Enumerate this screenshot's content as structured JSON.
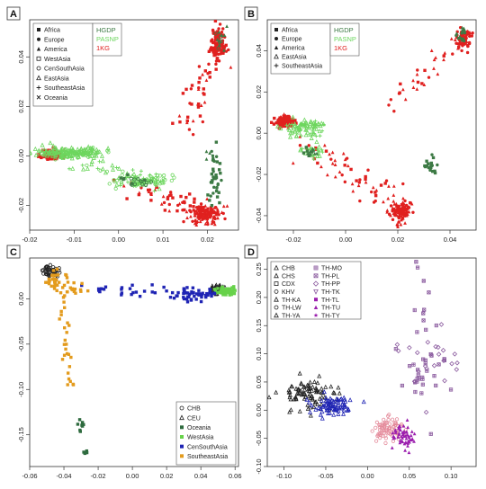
{
  "chart_data": [
    {
      "type": "scatter",
      "panel_label": "A",
      "xlim": [
        -0.02,
        0.027
      ],
      "ylim": [
        -0.03,
        0.055
      ],
      "xticks": [
        -0.02,
        -0.01,
        0.0,
        0.01,
        0.02
      ],
      "xtick_labels": [
        "-0.02",
        "-0.01",
        "0.00",
        "0.01",
        "0.02"
      ],
      "yticks": [
        -0.02,
        0.0,
        0.02,
        0.04
      ],
      "ytick_labels": [
        "-0.02",
        "0.00",
        "0.02",
        "0.04"
      ],
      "legend_population": [
        "Africa",
        "Europe",
        "America",
        "WestAsia",
        "CenSouthAsia",
        "EastAsia",
        "SoutheastAsia",
        "Oceania"
      ],
      "legend_dataset": [
        {
          "name": "HGDP",
          "color": "#3d7a45"
        },
        {
          "name": "PASNP",
          "color": "#6dd65e"
        },
        {
          "name": "1KG",
          "color": "#e0201f"
        }
      ],
      "series": [
        {
          "name": "1KG",
          "color": "#e0201f",
          "clusters": [
            {
              "x": -0.015,
              "y": 0.0005,
              "sx": 0.0012,
              "sy": 0.0011,
              "n": 110
            },
            {
              "x": 0.0195,
              "y": -0.0235,
              "sx": 0.0018,
              "sy": 0.0018,
              "n": 140
            },
            {
              "x": 0.0225,
              "y": 0.0455,
              "sx": 0.0008,
              "sy": 0.0035,
              "n": 110
            }
          ],
          "lines": [
            {
              "from": [
                0.002,
                -0.011
              ],
              "to": [
                0.0195,
                -0.023
              ],
              "n": 55,
              "spread": 0.0025
            },
            {
              "from": [
                0.0145,
                0.01
              ],
              "to": [
                0.0215,
                0.043
              ],
              "n": 40,
              "spread": 0.002
            }
          ]
        },
        {
          "name": "PASNP",
          "color": "#6dd65e",
          "clusters": [
            {
              "x": -0.0115,
              "y": 0.0013,
              "sx": 0.0045,
              "sy": 0.0012,
              "n": 170
            },
            {
              "x": 0.005,
              "y": -0.0105,
              "sx": 0.003,
              "sy": 0.0012,
              "n": 70
            }
          ],
          "lines": [
            {
              "from": [
                -0.009,
                -0.004
              ],
              "to": [
                0.012,
                -0.012
              ],
              "n": 50,
              "spread": 0.0018
            }
          ]
        },
        {
          "name": "HGDP",
          "color": "#3d7a45",
          "clusters": [
            {
              "x": 0.0215,
              "y": -0.012,
              "sx": 0.0008,
              "sy": 0.005,
              "n": 32
            },
            {
              "x": 0.021,
              "y": 0.0005,
              "sx": 0.0005,
              "sy": 0.0015,
              "n": 10
            },
            {
              "x": 0.023,
              "y": 0.047,
              "sx": 0.0006,
              "sy": 0.0025,
              "n": 14
            },
            {
              "x": 0.0035,
              "y": -0.0105,
              "sx": 0.0022,
              "sy": 0.0009,
              "n": 18
            }
          ],
          "lines": []
        }
      ]
    },
    {
      "type": "scatter",
      "panel_label": "B",
      "xlim": [
        -0.03,
        0.05
      ],
      "ylim": [
        -0.047,
        0.055
      ],
      "xticks": [
        -0.02,
        0.0,
        0.02,
        0.04
      ],
      "xtick_labels": [
        "-0.02",
        "0.00",
        "0.02",
        "0.04"
      ],
      "yticks": [
        -0.04,
        -0.02,
        0.0,
        0.02,
        0.04
      ],
      "ytick_labels": [
        "-0.04",
        "-0.02",
        "0.00",
        "0.02",
        "0.04"
      ],
      "legend_population": [
        "Africa",
        "Europe",
        "America",
        "EastAsia",
        "SoutheastAsia"
      ],
      "legend_dataset": [
        {
          "name": "HGDP",
          "color": "#3d7a45"
        },
        {
          "name": "PASNP",
          "color": "#6dd65e"
        },
        {
          "name": "1KG",
          "color": "#e0201f"
        }
      ],
      "series": [
        {
          "name": "1KG",
          "color": "#e0201f",
          "clusters": [
            {
              "x": -0.0235,
              "y": 0.0055,
              "sx": 0.0018,
              "sy": 0.0012,
              "n": 100
            },
            {
              "x": 0.021,
              "y": -0.038,
              "sx": 0.002,
              "sy": 0.0025,
              "n": 120
            },
            {
              "x": 0.045,
              "y": 0.046,
              "sx": 0.0015,
              "sy": 0.0025,
              "n": 80
            }
          ],
          "lines": [
            {
              "from": [
                -0.015,
                -0.005
              ],
              "to": [
                0.02,
                -0.035
              ],
              "n": 60,
              "spread": 0.0035
            },
            {
              "from": [
                0.017,
                0.012
              ],
              "to": [
                0.044,
                0.044
              ],
              "n": 28,
              "spread": 0.0025
            }
          ]
        },
        {
          "name": "PASNP",
          "color": "#6dd65e",
          "clusters": [
            {
              "x": -0.016,
              "y": 0.0025,
              "sx": 0.0045,
              "sy": 0.0025,
              "n": 85
            },
            {
              "x": -0.013,
              "y": -0.009,
              "sx": 0.0018,
              "sy": 0.0015,
              "n": 25
            }
          ],
          "lines": []
        },
        {
          "name": "HGDP",
          "color": "#3d7a45",
          "clusters": [
            {
              "x": 0.032,
              "y": -0.017,
              "sx": 0.0012,
              "sy": 0.0025,
              "n": 18
            },
            {
              "x": 0.044,
              "y": 0.047,
              "sx": 0.0018,
              "sy": 0.0018,
              "n": 15
            },
            {
              "x": -0.0135,
              "y": -0.0095,
              "sx": 0.0015,
              "sy": 0.001,
              "n": 14
            }
          ],
          "lines": []
        }
      ]
    },
    {
      "type": "scatter",
      "panel_label": "C",
      "xlim": [
        -0.06,
        0.062
      ],
      "ylim": [
        -0.185,
        0.045
      ],
      "xticks": [
        -0.06,
        -0.04,
        -0.02,
        0.0,
        0.02,
        0.04,
        0.06
      ],
      "xtick_labels": [
        "-0.06",
        "-0.04",
        "-0.02",
        "0.00",
        "0.02",
        "0.04",
        "0.06"
      ],
      "yticks": [
        -0.15,
        -0.1,
        -0.05,
        0.0
      ],
      "ytick_labels": [
        "-0.15",
        "-0.10",
        "-0.05",
        "0.00"
      ],
      "legend_population": [
        {
          "name": "CHB",
          "color": "#222222"
        },
        {
          "name": "CEU",
          "color": "#222222"
        },
        {
          "name": "Oceania",
          "color": "#2e6b3e"
        },
        {
          "name": "WestAsia",
          "color": "#67d24a"
        },
        {
          "name": "CenSouthAsia",
          "color": "#1f24b4"
        },
        {
          "name": "SoutheastAsia",
          "color": "#e39b1d"
        }
      ],
      "series": [
        {
          "name": "CHB",
          "color": "#222222",
          "clusters": [
            {
              "x": -0.0475,
              "y": 0.03,
              "sx": 0.0022,
              "sy": 0.003,
              "n": 45
            }
          ],
          "lines": []
        },
        {
          "name": "CEU",
          "color": "#222222",
          "clusters": [
            {
              "x": 0.0505,
              "y": 0.011,
              "sx": 0.0022,
              "sy": 0.0025,
              "n": 45
            }
          ],
          "lines": []
        },
        {
          "name": "WestAsia",
          "color": "#67d24a",
          "clusters": [
            {
              "x": 0.054,
              "y": 0.009,
              "sx": 0.0025,
              "sy": 0.0025,
              "n": 60
            }
          ],
          "lines": []
        },
        {
          "name": "CenSouthAsia",
          "color": "#1f24b4",
          "clusters": [
            {
              "x": 0.035,
              "y": 0.005,
              "sx": 0.007,
              "sy": 0.004,
              "n": 55
            },
            {
              "x": 0.005,
              "y": 0.01,
              "sx": 0.008,
              "sy": 0.004,
              "n": 15
            },
            {
              "x": -0.022,
              "y": 0.012,
              "sx": 0.004,
              "sy": 0.003,
              "n": 8
            }
          ],
          "lines": []
        },
        {
          "name": "SoutheastAsia",
          "color": "#e39b1d",
          "clusters": [
            {
              "x": -0.045,
              "y": 0.022,
              "sx": 0.003,
              "sy": 0.005,
              "n": 25
            },
            {
              "x": -0.036,
              "y": 0.013,
              "sx": 0.005,
              "sy": 0.003,
              "n": 20
            }
          ],
          "lines": [
            {
              "from": [
                -0.041,
                0.005
              ],
              "to": [
                -0.037,
                -0.095
              ],
              "n": 28,
              "spread": 0.0015
            }
          ]
        },
        {
          "name": "Oceania",
          "color": "#2e6b3e",
          "clusters": [
            {
              "x": -0.03,
              "y": -0.14,
              "sx": 0.001,
              "sy": 0.004,
              "n": 8
            },
            {
              "x": -0.028,
              "y": -0.172,
              "sx": 0.0008,
              "sy": 0.003,
              "n": 5
            }
          ],
          "lines": []
        }
      ]
    },
    {
      "type": "scatter",
      "panel_label": "D",
      "xlim": [
        -0.12,
        0.13
      ],
      "ylim": [
        -0.1,
        0.27
      ],
      "xticks": [
        -0.1,
        -0.05,
        0.0,
        0.05,
        0.1
      ],
      "xtick_labels": [
        "-0.10",
        "-0.05",
        "0.00",
        "0.05",
        "0.10"
      ],
      "yticks": [
        -0.1,
        -0.05,
        0.0,
        0.05,
        0.1,
        0.15,
        0.2,
        0.25
      ],
      "ytick_labels": [
        "-0.10",
        "-0.05",
        "0.00",
        "0.05",
        "0.10",
        "0.15",
        "0.20",
        "0.25"
      ],
      "legend_population": [
        {
          "name": "CHB",
          "color": "#222222"
        },
        {
          "name": "CHS",
          "color": "#222222"
        },
        {
          "name": "CDX",
          "color": "#222222"
        },
        {
          "name": "KHV",
          "color": "#222222"
        },
        {
          "name": "TH-KA",
          "color": "#222222"
        },
        {
          "name": "TH-LW",
          "color": "#222222"
        },
        {
          "name": "TH-YA",
          "color": "#222222"
        },
        {
          "name": "TH-MO",
          "color": "#8a5a9e"
        },
        {
          "name": "TH-PL",
          "color": "#8a5a9e"
        },
        {
          "name": "TH-PP",
          "color": "#8a5a9e"
        },
        {
          "name": "TH-TK",
          "color": "#8a5a9e"
        },
        {
          "name": "TH-TL",
          "color": "#9b1fae"
        },
        {
          "name": "TH-TU",
          "color": "#9b1fae"
        },
        {
          "name": "TH-TY",
          "color": "#9b1fae"
        }
      ],
      "series": [
        {
          "name": "CHB",
          "color": "#222222",
          "clusters": [
            {
              "x": -0.07,
              "y": 0.03,
              "sx": 0.018,
              "sy": 0.014,
              "n": 90
            }
          ],
          "lines": []
        },
        {
          "name": "CHS",
          "color": "#1f24b4",
          "clusters": [
            {
              "x": -0.04,
              "y": 0.005,
              "sx": 0.013,
              "sy": 0.011,
              "n": 80
            }
          ],
          "lines": []
        },
        {
          "name": "KHV",
          "color": "#e48a9a",
          "clusters": [
            {
              "x": 0.025,
              "y": -0.035,
              "sx": 0.01,
              "sy": 0.011,
              "n": 75
            }
          ],
          "lines": []
        },
        {
          "name": "TH-TL",
          "color": "#9b1fae",
          "clusters": [
            {
              "x": 0.045,
              "y": -0.045,
              "sx": 0.008,
              "sy": 0.01,
              "n": 55
            }
          ],
          "lines": []
        },
        {
          "name": "TH-PL",
          "color": "#8a5a9e",
          "clusters": [
            {
              "x": 0.07,
              "y": 0.06,
              "sx": 0.018,
              "sy": 0.04,
              "n": 40
            },
            {
              "x": 0.095,
              "y": 0.095,
              "sx": 0.012,
              "sy": 0.02,
              "n": 12
            },
            {
              "x": 0.065,
              "y": 0.2,
              "sx": 0.006,
              "sy": 0.035,
              "n": 9
            }
          ],
          "lines": []
        }
      ]
    }
  ]
}
